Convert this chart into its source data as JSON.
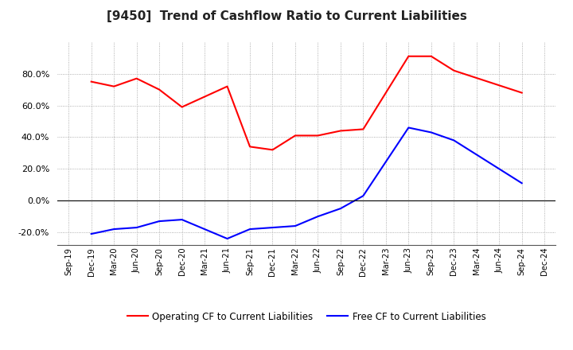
{
  "title": "[9450]  Trend of Cashflow Ratio to Current Liabilities",
  "x_labels": [
    "Sep-19",
    "Dec-19",
    "Mar-20",
    "Jun-20",
    "Sep-20",
    "Dec-20",
    "Mar-21",
    "Jun-21",
    "Sep-21",
    "Dec-21",
    "Mar-22",
    "Jun-22",
    "Sep-22",
    "Dec-22",
    "Mar-23",
    "Jun-23",
    "Sep-23",
    "Dec-23",
    "Mar-24",
    "Jun-24",
    "Sep-24",
    "Dec-24"
  ],
  "op_data": {
    "Dec-19": 75.0,
    "Mar-20": 72.0,
    "Jun-20": 77.0,
    "Sep-20": 70.0,
    "Dec-20": 59.0,
    "Jun-21": 72.0,
    "Sep-21": 34.0,
    "Dec-21": 32.0,
    "Mar-22": 41.0,
    "Jun-22": 41.0,
    "Sep-22": 44.0,
    "Dec-22": 45.0,
    "Jun-23": 91.0,
    "Sep-23": 91.0,
    "Dec-23": 82.0,
    "Sep-24": 68.0
  },
  "free_data": {
    "Dec-19": -21.0,
    "Mar-20": -18.0,
    "Jun-20": -17.0,
    "Sep-20": -13.0,
    "Dec-20": -12.0,
    "Jun-21": -24.0,
    "Sep-21": -18.0,
    "Dec-21": -17.0,
    "Mar-22": -16.0,
    "Jun-22": -10.0,
    "Sep-22": -5.0,
    "Dec-22": 3.0,
    "Jun-23": 46.0,
    "Sep-23": 43.0,
    "Dec-23": 38.0,
    "Sep-24": 11.0
  },
  "legend_operating": "Operating CF to Current Liabilities",
  "legend_free": "Free CF to Current Liabilities",
  "operating_color": "#ff0000",
  "free_color": "#0000ff",
  "ylim": [
    -28,
    100
  ],
  "yticks": [
    -20.0,
    0.0,
    20.0,
    40.0,
    60.0,
    80.0
  ],
  "background_color": "#ffffff",
  "grid_color": "#999999",
  "title_fontsize": 11
}
